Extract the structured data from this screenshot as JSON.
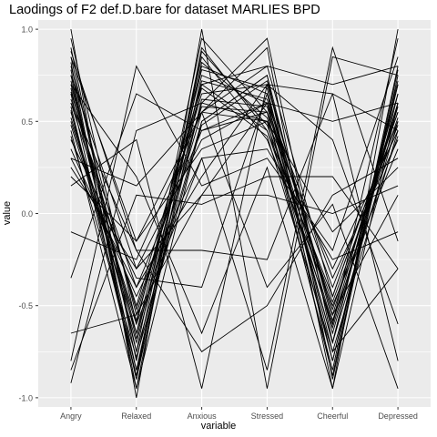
{
  "chart_data": {
    "type": "line",
    "title": "Laodings of F2 def.D.bare for dataset MARLIES BPD",
    "xlabel": "variable",
    "ylabel": "value",
    "categories": [
      "Angry",
      "Relaxed",
      "Anxious",
      "Stressed",
      "Cheerful",
      "Depressed"
    ],
    "ylim": [
      -1.05,
      1.05
    ],
    "yticks": [
      -1.0,
      -0.5,
      0.0,
      0.5,
      1.0
    ],
    "ytick_labels": [
      "-1.0",
      "-0.5",
      "0.0",
      "0.5",
      "1.0"
    ],
    "grid": true,
    "background": "#ebebeb",
    "gridline_color": "#ffffff",
    "line_color": "#000000",
    "series": [
      {
        "values": [
          0.85,
          -0.75,
          0.95,
          0.55,
          -0.8,
          0.7
        ]
      },
      {
        "values": [
          0.8,
          -0.55,
          0.65,
          0.7,
          -0.55,
          0.6
        ]
      },
      {
        "values": [
          0.75,
          -0.85,
          0.75,
          0.6,
          -0.7,
          0.5
        ]
      },
      {
        "values": [
          0.7,
          -0.65,
          0.55,
          0.9,
          -0.9,
          0.75
        ]
      },
      {
        "values": [
          0.65,
          -0.9,
          0.9,
          0.45,
          -0.6,
          0.65
        ]
      },
      {
        "values": [
          0.6,
          -0.5,
          0.7,
          0.8,
          -0.45,
          0.55
        ]
      },
      {
        "values": [
          0.55,
          -0.7,
          0.6,
          0.5,
          -0.85,
          0.8
        ]
      },
      {
        "values": [
          0.5,
          -0.6,
          0.8,
          0.65,
          -0.75,
          0.45
        ]
      },
      {
        "values": [
          0.45,
          -0.95,
          0.5,
          0.75,
          -0.65,
          0.6
        ]
      },
      {
        "values": [
          0.9,
          -0.8,
          0.85,
          0.4,
          -0.5,
          0.35
        ]
      },
      {
        "values": [
          0.3,
          -0.4,
          0.45,
          0.55,
          -0.4,
          0.5
        ]
      },
      {
        "values": [
          0.25,
          -0.3,
          0.4,
          0.6,
          -0.35,
          0.4
        ]
      },
      {
        "values": [
          0.2,
          -0.15,
          0.35,
          0.5,
          -0.3,
          0.45
        ]
      },
      {
        "values": [
          -0.65,
          -0.55,
          0.1,
          0.1,
          0.0,
          0.15
        ]
      },
      {
        "values": [
          -0.8,
          0.8,
          0.15,
          0.3,
          -0.2,
          0.85
        ]
      },
      {
        "values": [
          -0.92,
          0.45,
          0.6,
          0.95,
          -0.7,
          0.7
        ]
      },
      {
        "values": [
          -0.85,
          0.1,
          0.05,
          0.2,
          0.2,
          -0.3
        ]
      },
      {
        "values": [
          1.0,
          -1.0,
          1.0,
          -0.95,
          0.85,
          0.75
        ]
      },
      {
        "values": [
          0.95,
          -0.6,
          0.3,
          -0.85,
          0.9,
          -0.15
        ]
      },
      {
        "values": [
          0.88,
          -0.2,
          -0.2,
          -0.25,
          0.65,
          0.45
        ]
      },
      {
        "values": [
          0.15,
          0.4,
          -0.95,
          0.7,
          0.4,
          -0.6
        ]
      },
      {
        "values": [
          -0.35,
          0.65,
          0.45,
          0.6,
          -0.6,
          0.95
        ]
      },
      {
        "values": [
          0.7,
          0.2,
          -0.65,
          0.25,
          -0.95,
          1.0
        ]
      },
      {
        "values": [
          0.6,
          -0.2,
          -0.75,
          -0.5,
          0.1,
          0.3
        ]
      },
      {
        "values": [
          0.85,
          -0.15,
          0.55,
          0.5,
          -0.1,
          0.25
        ]
      },
      {
        "values": [
          0.4,
          -0.35,
          -0.4,
          0.65,
          -0.55,
          0.1
        ]
      },
      {
        "values": [
          0.35,
          -0.45,
          0.3,
          0.35,
          -0.25,
          -0.1
        ]
      },
      {
        "values": [
          0.78,
          -0.9,
          0.7,
          0.45,
          -0.45,
          0.55
        ]
      },
      {
        "values": [
          0.68,
          -0.75,
          0.5,
          0.75,
          -0.95,
          0.6
        ]
      },
      {
        "values": [
          0.58,
          -0.85,
          0.62,
          0.58,
          -0.7,
          0.72
        ]
      },
      {
        "values": [
          0.48,
          -0.65,
          0.78,
          0.68,
          -0.8,
          0.65
        ]
      },
      {
        "values": [
          0.82,
          -0.95,
          0.82,
          0.52,
          -0.62,
          0.58
        ]
      },
      {
        "values": [
          0.72,
          -0.68,
          0.72,
          0.62,
          -0.52,
          0.52
        ]
      },
      {
        "values": [
          -0.1,
          -0.25,
          0.55,
          0.8,
          0.7,
          0.8
        ]
      },
      {
        "values": [
          0.3,
          0.15,
          0.55,
          -0.4,
          0.05,
          -0.95
        ]
      },
      {
        "values": [
          0.62,
          -0.4,
          0.2,
          0.7,
          0.65,
          -0.8
        ]
      },
      {
        "values": [
          0.75,
          -0.3,
          0.1,
          0.6,
          0.5,
          0.6
        ]
      },
      {
        "values": [
          0.52,
          -0.58,
          0.68,
          0.42,
          -0.75,
          -0.3
        ]
      },
      {
        "values": [
          0.42,
          -0.78,
          0.48,
          0.72,
          -0.58,
          0.42
        ]
      },
      {
        "values": [
          0.66,
          -0.52,
          0.58,
          0.55,
          -0.88,
          0.78
        ]
      },
      {
        "values": [
          0.56,
          -0.88,
          0.88,
          0.48,
          -0.48,
          0.48
        ]
      }
    ]
  }
}
